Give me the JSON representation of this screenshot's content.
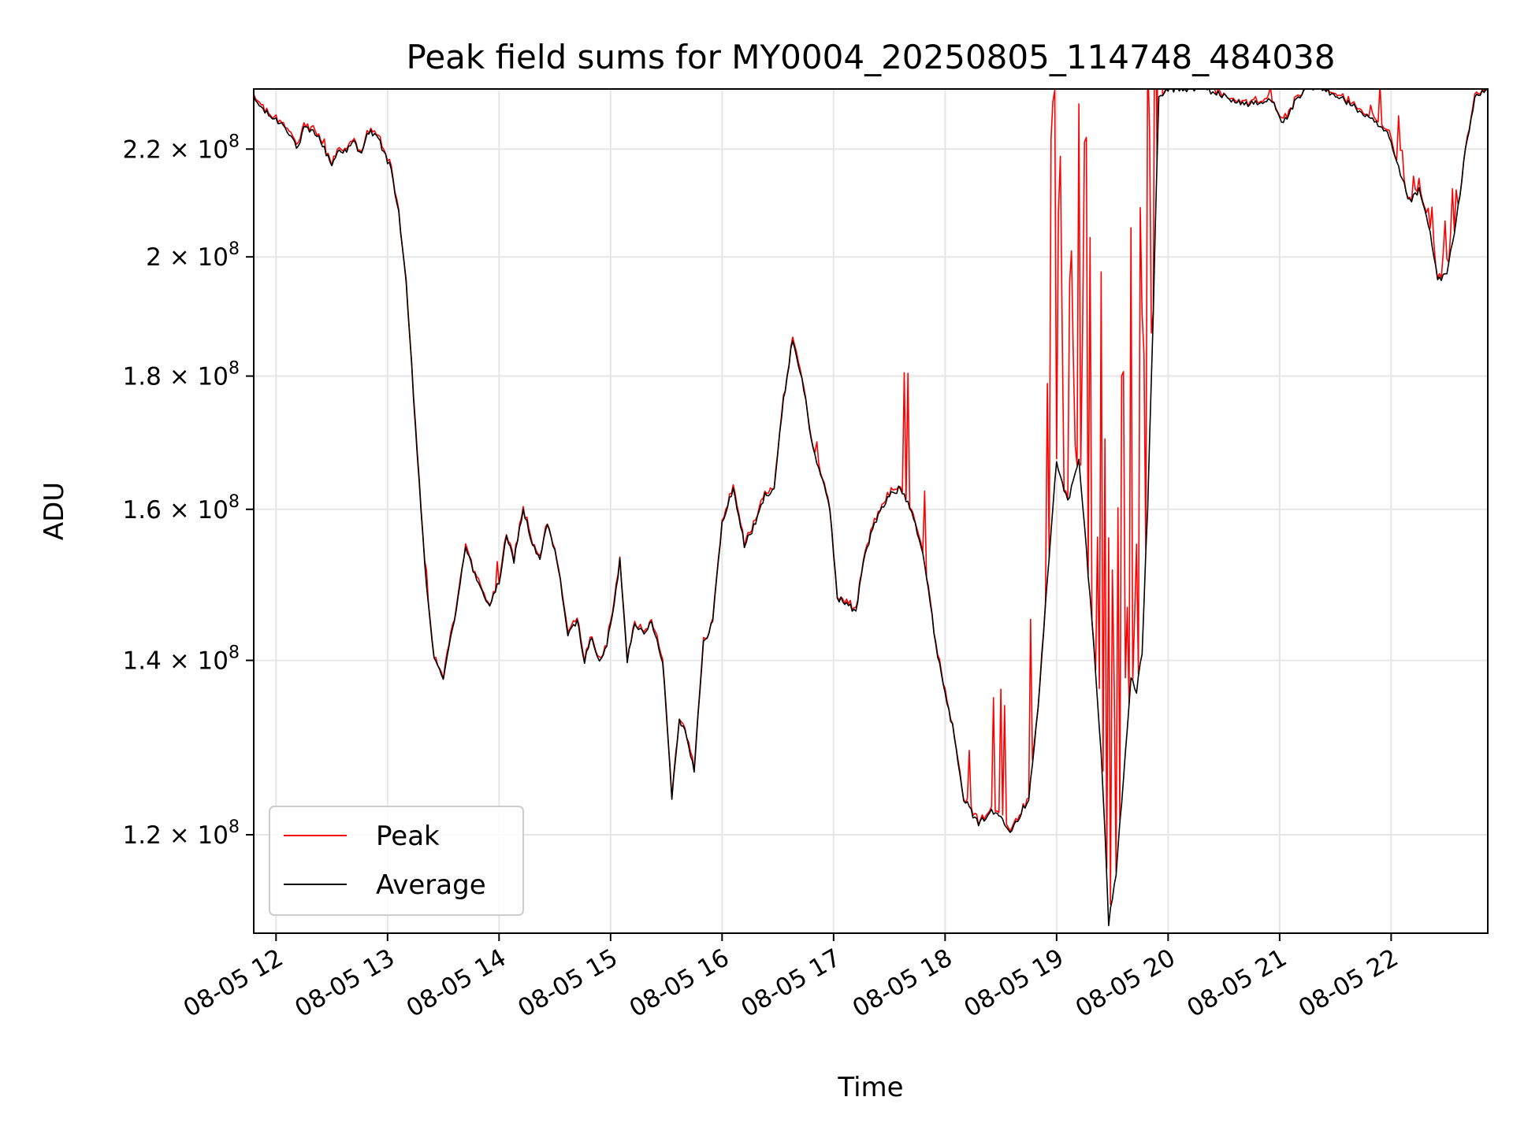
{
  "chart_data": {
    "type": "line",
    "title": "Peak field sums for MY0004_20250805_114748_484038",
    "xlabel": "Time",
    "ylabel": "ADU",
    "y_scale": "log",
    "xlim": [
      "2025-08-05 11:48",
      "2025-08-05 22:52"
    ],
    "ylim": [
      110000000,
      232000000
    ],
    "grid": true,
    "legend": "lower-left",
    "x_ticks": [
      {
        "value": "2025-08-05 12:00",
        "label": "08-05 12"
      },
      {
        "value": "2025-08-05 13:00",
        "label": "08-05 13"
      },
      {
        "value": "2025-08-05 14:00",
        "label": "08-05 14"
      },
      {
        "value": "2025-08-05 15:00",
        "label": "08-05 15"
      },
      {
        "value": "2025-08-05 16:00",
        "label": "08-05 16"
      },
      {
        "value": "2025-08-05 17:00",
        "label": "08-05 17"
      },
      {
        "value": "2025-08-05 18:00",
        "label": "08-05 18"
      },
      {
        "value": "2025-08-05 19:00",
        "label": "08-05 19"
      },
      {
        "value": "2025-08-05 20:00",
        "label": "08-05 20"
      },
      {
        "value": "2025-08-05 21:00",
        "label": "08-05 21"
      },
      {
        "value": "2025-08-05 22:00",
        "label": "08-05 22"
      }
    ],
    "y_ticks": [
      {
        "value": 120000000,
        "mantissa": "1.2",
        "base": "10",
        "exp": "8"
      },
      {
        "value": 140000000,
        "mantissa": "1.4",
        "base": "10",
        "exp": "8"
      },
      {
        "value": 160000000,
        "mantissa": "1.6",
        "base": "10",
        "exp": "8"
      },
      {
        "value": 180000000,
        "mantissa": "1.8",
        "base": "10",
        "exp": "8"
      },
      {
        "value": 200000000,
        "mantissa": "2",
        "base": "10",
        "exp": "8"
      },
      {
        "value": 220000000,
        "mantissa": "2.2",
        "base": "10",
        "exp": "8"
      }
    ],
    "series": [
      {
        "name": "Peak",
        "color": "#ff0000"
      },
      {
        "name": "Average",
        "color": "#000000",
        "x": [
          "11:48",
          "11:55",
          "12:05",
          "12:12",
          "12:15",
          "12:22",
          "12:30",
          "12:34",
          "12:38",
          "12:42",
          "12:45",
          "12:50",
          "12:55",
          "13:02",
          "13:06",
          "13:10",
          "13:15",
          "13:20",
          "13:25",
          "13:30",
          "13:36",
          "13:42",
          "13:48",
          "13:55",
          "14:00",
          "14:04",
          "14:08",
          "14:13",
          "14:18",
          "14:22",
          "14:26",
          "14:32",
          "14:37",
          "14:42",
          "14:46",
          "14:50",
          "14:54",
          "14:58",
          "15:02",
          "15:05",
          "15:09",
          "15:13",
          "15:18",
          "15:22",
          "15:28",
          "15:33",
          "15:37",
          "15:41",
          "15:45",
          "15:50",
          "15:55",
          "16:00",
          "16:06",
          "16:12",
          "16:18",
          "16:23",
          "16:28",
          "16:33",
          "16:38",
          "16:44",
          "16:48",
          "16:52",
          "16:58",
          "17:02",
          "17:08",
          "17:12",
          "17:16",
          "17:22",
          "17:30",
          "17:36",
          "17:42",
          "17:48",
          "17:55",
          "18:00",
          "18:05",
          "18:10",
          "18:18",
          "18:24",
          "18:30",
          "18:35",
          "18:40",
          "18:45",
          "18:50",
          "18:55",
          "19:00",
          "19:06",
          "19:12",
          "19:18",
          "19:24",
          "19:28",
          "19:32",
          "19:36",
          "19:40",
          "19:43",
          "19:46",
          "19:49",
          "19:52",
          "19:55",
          "20:00",
          "20:20",
          "20:40",
          "20:50",
          "20:56",
          "21:02",
          "21:08",
          "21:15",
          "21:22",
          "21:30",
          "21:45",
          "21:58",
          "22:05",
          "22:10",
          "22:15",
          "22:20",
          "22:25",
          "22:30",
          "22:35",
          "22:40",
          "22:45",
          "22:52"
        ],
        "values": [
          230000000,
          227000000,
          224500000,
          220000000,
          224000000,
          223000000,
          217000000,
          220000000,
          219500000,
          221500000,
          219000000,
          223500000,
          222000000,
          216000000,
          208000000,
          195000000,
          172000000,
          152000000,
          140000000,
          138000000,
          145000000,
          155000000,
          150000000,
          147000000,
          150000000,
          156000000,
          153000000,
          160000000,
          155000000,
          153000000,
          158000000,
          152000000,
          143000000,
          145000000,
          140000000,
          143000000,
          139500000,
          142000000,
          147000000,
          153000000,
          140000000,
          145000000,
          143000000,
          145000000,
          140000000,
          124000000,
          133000000,
          131000000,
          127000000,
          142000000,
          145000000,
          158000000,
          163000000,
          155000000,
          158000000,
          162000000,
          163000000,
          176000000,
          186000000,
          178000000,
          170000000,
          166000000,
          160000000,
          148000000,
          147000000,
          146000000,
          153000000,
          158000000,
          162000000,
          163000000,
          160000000,
          154000000,
          142000000,
          136000000,
          131000000,
          124000000,
          121000000,
          122500000,
          122000000,
          120500000,
          122000000,
          124000000,
          134000000,
          150000000,
          167000000,
          161000000,
          167000000,
          148000000,
          129000000,
          111000000,
          116000000,
          126000000,
          138000000,
          136000000,
          141000000,
          160000000,
          190000000,
          230000000,
          232000000,
          232000000,
          229000000,
          229000000,
          230000000,
          225000000,
          229000000,
          232000000,
          232000000,
          231000000,
          227000000,
          223000000,
          215000000,
          210000000,
          212000000,
          206000000,
          196000000,
          197000000,
          206000000,
          220000000,
          230000000,
          232000000
        ]
      }
    ]
  }
}
